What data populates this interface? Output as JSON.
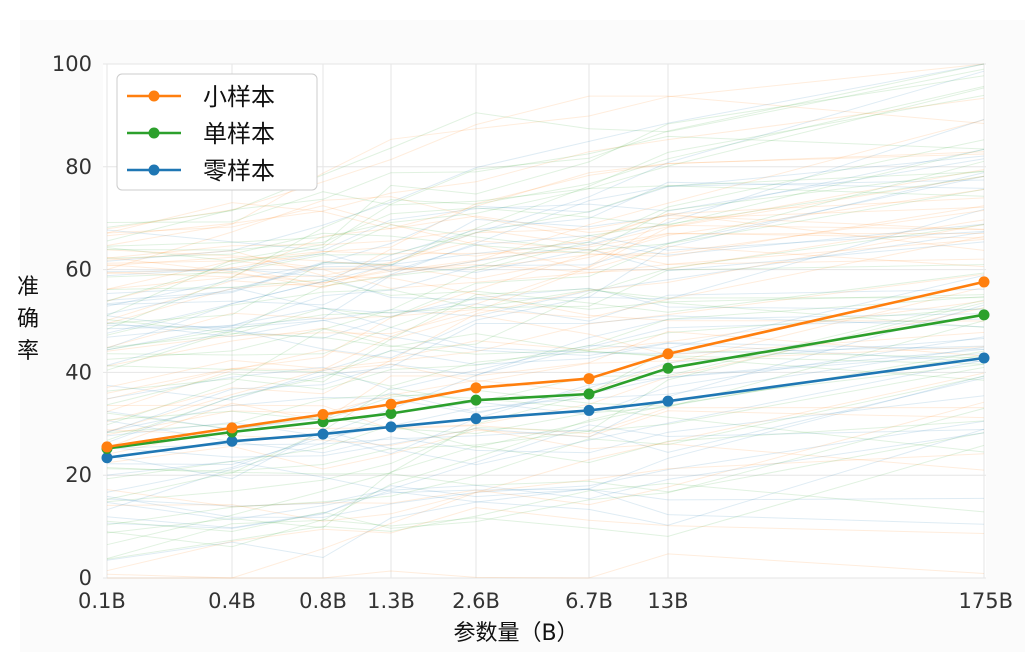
{
  "chart_data": {
    "type": "line",
    "title": "",
    "xlabel": "参数量（B）",
    "ylabel": "准确率",
    "x": [
      "0.1B",
      "0.4B",
      "0.8B",
      "1.3B",
      "2.6B",
      "6.7B",
      "13B",
      "175B"
    ],
    "ylim": [
      0,
      100
    ],
    "yticks": [
      0,
      20,
      40,
      60,
      80,
      100
    ],
    "grid": true,
    "legend_position": "top-left",
    "series": [
      {
        "name": "小样本",
        "color": "#ff7f0e",
        "values": [
          25.5,
          29.2,
          31.8,
          33.8,
          37.0,
          38.8,
          43.6,
          57.6
        ]
      },
      {
        "name": "单样本",
        "color": "#2ca02c",
        "values": [
          25.2,
          28.4,
          30.4,
          32.0,
          34.6,
          35.8,
          40.8,
          51.2
        ]
      },
      {
        "name": "零样本",
        "color": "#1f77b4",
        "values": [
          23.4,
          26.6,
          28.0,
          29.4,
          31.0,
          32.6,
          34.4,
          42.8
        ]
      }
    ]
  }
}
